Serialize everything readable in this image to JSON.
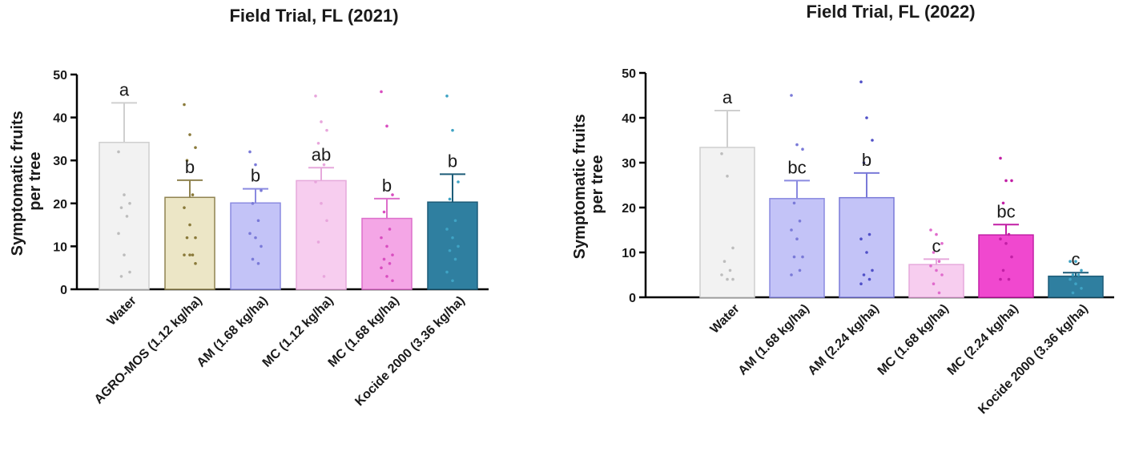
{
  "chart_data": [
    {
      "type": "bar",
      "title": "Field Trial, FL (2021)",
      "ylabel_lines": [
        "Symptomatic fruits",
        "per tree"
      ],
      "ylim": [
        0,
        50
      ],
      "yticks": [
        0,
        10,
        20,
        30,
        40,
        50
      ],
      "categories": [
        "Water",
        "AGRO-MOS (1.12 kg/ha)",
        "AM (1.68 kg/ha)",
        "MC (1.12 kg/ha)",
        "MC (1.68 kg/ha)",
        "Kocide 2000 (3.36 kg/ha)"
      ],
      "values": [
        34.2,
        21.4,
        20.1,
        25.3,
        16.5,
        20.3
      ],
      "errors": [
        9.2,
        4.0,
        3.3,
        3.0,
        4.6,
        6.5
      ],
      "letters": [
        "a",
        "b",
        "b",
        "ab",
        "b",
        "b"
      ],
      "fill_colors": [
        "#f2f2f2",
        "#ece6c6",
        "#c3c3f7",
        "#f7cdef",
        "#f4a6e6",
        "#2f7fa0"
      ],
      "edge_colors": [
        "#cfcfcf",
        "#8f8350",
        "#8a8ae0",
        "#e6a9dc",
        "#dd6fcb",
        "#1d5c78"
      ],
      "point_colors": [
        "#bdbdbd",
        "#8a7a3a",
        "#7a7ad8",
        "#e8a6dc",
        "#d94ec0",
        "#3fa3c4"
      ],
      "points": [
        [
          32,
          22,
          20,
          19,
          17,
          13,
          8,
          4,
          3
        ],
        [
          43,
          36,
          33,
          30,
          22,
          19,
          15,
          12,
          12,
          8,
          8,
          8,
          6
        ],
        [
          32,
          29,
          23,
          20,
          16,
          13,
          12,
          10,
          7,
          6
        ],
        [
          45,
          39,
          37,
          34,
          29,
          25,
          20,
          16,
          11,
          3
        ],
        [
          46,
          38,
          22,
          18,
          14,
          12,
          10,
          8,
          7,
          6,
          5,
          3,
          2
        ],
        [
          45,
          37,
          25,
          21,
          16,
          14,
          12,
          10,
          9,
          7,
          4,
          2
        ]
      ]
    },
    {
      "type": "bar",
      "title": "Field Trial, FL (2022)",
      "ylabel_lines": [
        "Symptomatic fruits",
        "per tree"
      ],
      "ylim": [
        0,
        50
      ],
      "yticks": [
        0,
        10,
        20,
        30,
        40,
        50
      ],
      "categories": [
        "Water",
        "AM (1.68 kg/ha)",
        "AM (2.24 kg/ha)",
        "MC (1.68 kg/ha)",
        "MC (2.24 kg/ha)",
        "Kocide 2000 (3.36 kg/ha)"
      ],
      "values": [
        33.4,
        22.0,
        22.2,
        7.3,
        13.9,
        4.7
      ],
      "errors": [
        8.2,
        4.0,
        5.5,
        1.2,
        2.3,
        0.8
      ],
      "letters": [
        "a",
        "bc",
        "b",
        "c",
        "bc",
        "c"
      ],
      "fill_colors": [
        "#f2f2f2",
        "#c3c3f7",
        "#c3c3f7",
        "#f7cdef",
        "#f048cf",
        "#2f7fa0"
      ],
      "edge_colors": [
        "#cfcfcf",
        "#8a8ae0",
        "#7a7ad8",
        "#e6a9dc",
        "#c21fa5",
        "#1d5c78"
      ],
      "point_colors": [
        "#bdbdbd",
        "#7a7ad8",
        "#5050c8",
        "#e06bcc",
        "#c21fa5",
        "#3fa3c4"
      ],
      "points": [
        [
          32,
          27,
          11,
          8,
          6,
          5,
          4,
          4
        ],
        [
          45,
          34,
          33,
          21,
          17,
          15,
          13,
          9,
          9,
          6,
          5
        ],
        [
          48,
          40,
          35,
          30,
          14,
          13,
          10,
          6,
          5,
          4,
          3
        ],
        [
          15,
          14,
          12,
          10,
          8,
          7,
          6,
          5,
          3,
          1
        ],
        [
          31,
          26,
          26,
          21,
          14,
          13,
          12,
          9,
          6,
          4,
          4
        ],
        [
          8,
          8,
          6,
          5,
          5,
          4,
          3,
          2,
          1
        ]
      ]
    }
  ]
}
